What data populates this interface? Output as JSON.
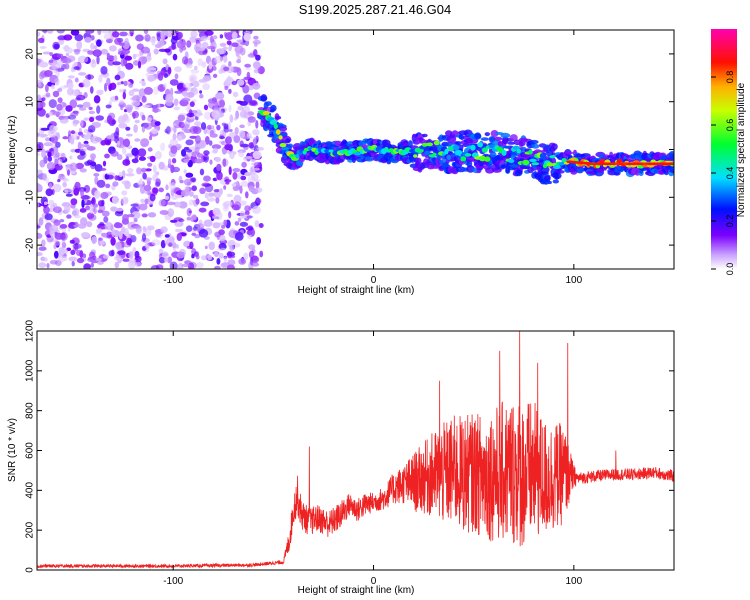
{
  "title": "S199.2025.287.21.46.G04",
  "chart_data": [
    {
      "type": "heatmap",
      "xlabel": "Height of straight line (km)",
      "ylabel": "Frequency (Hz)",
      "xlim": [
        -168,
        150
      ],
      "ylim": [
        -25,
        25
      ],
      "xticks": [
        -100,
        0,
        100
      ],
      "yticks": [
        -20,
        -10,
        0,
        10,
        20
      ],
      "colorbar": {
        "label": "Normalized spectral amplitude",
        "range": [
          0,
          1
        ],
        "ticks": [
          "0.0",
          "0.2",
          "0.4",
          "0.6",
          "0.8"
        ],
        "stops": [
          "#ffffff",
          "#7b00ff",
          "#0000ff",
          "#00ffff",
          "#00ff00",
          "#ffff00",
          "#ff8000",
          "#ff0000",
          "#ff00aa"
        ]
      },
      "noise_region_x": [
        -168,
        -56
      ],
      "ridge": {
        "x": [
          -56,
          -52,
          -48,
          -44,
          -40,
          -34,
          -28,
          -20,
          -10,
          0,
          10,
          20,
          30,
          40,
          50,
          60,
          70,
          80,
          86,
          90,
          96,
          110,
          130,
          150
        ],
        "freq": [
          8,
          7,
          4,
          0,
          -2,
          0,
          -0.5,
          -0.5,
          -0.5,
          0,
          -0.5,
          -0.5,
          0,
          -0.5,
          -0.5,
          -0.5,
          -1,
          -2,
          -3,
          -3,
          -2.5,
          -3,
          -3,
          -3
        ]
      }
    },
    {
      "type": "line",
      "xlabel": "Height of straight line (km)",
      "ylabel": "SNR (10 * v/v)",
      "xlim": [
        -168,
        150
      ],
      "ylim": [
        0,
        1200
      ],
      "xticks": [
        -100,
        0,
        100
      ],
      "yticks": [
        0,
        200,
        400,
        600,
        800,
        1000,
        1200
      ],
      "color": "#ee2222",
      "envelope": {
        "x": [
          -168,
          -140,
          -100,
          -60,
          -45,
          -42,
          -40,
          -38,
          -36,
          -32,
          -28,
          -22,
          -16,
          -12,
          -8,
          -4,
          0,
          5,
          10,
          15,
          20,
          25,
          30,
          35,
          40,
          45,
          50,
          55,
          60,
          65,
          70,
          75,
          80,
          85,
          90,
          95,
          100,
          102,
          110,
          120,
          130,
          140,
          150
        ],
        "mean": [
          20,
          20,
          20,
          25,
          40,
          150,
          300,
          380,
          280,
          240,
          260,
          230,
          280,
          330,
          300,
          330,
          340,
          360,
          410,
          430,
          440,
          460,
          480,
          480,
          500,
          480,
          490,
          470,
          480,
          490,
          500,
          480,
          500,
          460,
          470,
          480,
          470,
          460,
          470,
          480,
          480,
          490,
          470
        ],
        "amp": [
          8,
          8,
          8,
          8,
          10,
          60,
          80,
          100,
          80,
          70,
          70,
          70,
          70,
          60,
          60,
          60,
          50,
          60,
          80,
          100,
          150,
          180,
          220,
          260,
          280,
          300,
          300,
          320,
          340,
          360,
          380,
          380,
          350,
          300,
          280,
          250,
          60,
          30,
          30,
          30,
          30,
          30,
          30
        ]
      },
      "peaks": [
        {
          "x": 73,
          "y": 1200
        },
        {
          "x": 97,
          "y": 1140
        },
        {
          "x": 63,
          "y": 1100
        },
        {
          "x": 82,
          "y": 1040
        },
        {
          "x": 33,
          "y": 950
        },
        {
          "x": -32,
          "y": 620
        },
        {
          "x": 121,
          "y": 600
        }
      ]
    }
  ]
}
